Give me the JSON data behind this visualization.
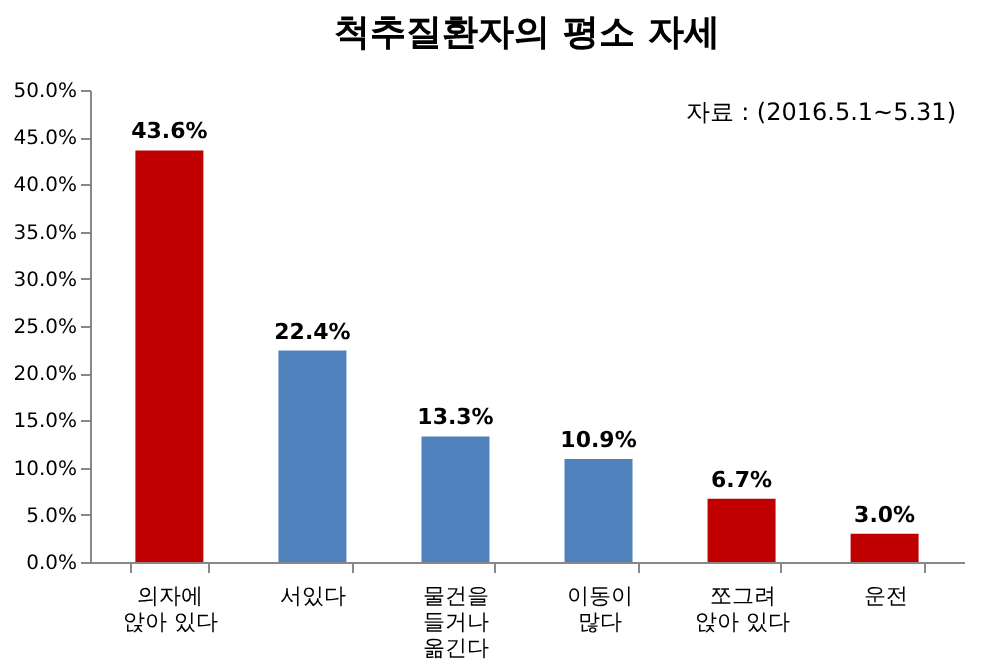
{
  "chart_data": {
    "type": "bar",
    "title": "척추질환자의 평소 자세",
    "annotations": [
      "자료 : (2016.5.1~5.31)"
    ],
    "categories": [
      "의자에\n앉아 있다",
      "서있다",
      "물건을\n들거나\n옮긴다",
      "이동이\n많다",
      "쪼그려\n앉아 있다",
      "운전"
    ],
    "values": [
      43.6,
      22.4,
      13.3,
      10.9,
      6.7,
      3.0
    ],
    "colors": [
      "#c00000",
      "#4f81bd",
      "#4f81bd",
      "#4f81bd",
      "#c00000",
      "#c00000"
    ],
    "value_labels": [
      "43.6%",
      "22.4%",
      "13.3%",
      "10.9%",
      "6.7%",
      "3.0%"
    ],
    "ylim": [
      0,
      50
    ],
    "yticks": [
      {
        "value": 0,
        "label": "0.0%"
      },
      {
        "value": 5,
        "label": "5.0%"
      },
      {
        "value": 10,
        "label": "10.0%"
      },
      {
        "value": 15,
        "label": "15.0%"
      },
      {
        "value": 20,
        "label": "20.0%"
      },
      {
        "value": 25,
        "label": "25.0%"
      },
      {
        "value": 30,
        "label": "30.0%"
      },
      {
        "value": 35,
        "label": "35.0%"
      },
      {
        "value": 40,
        "label": "40.0%"
      },
      {
        "value": 45,
        "label": "45.0%"
      },
      {
        "value": 50,
        "label": "50.0%"
      }
    ],
    "grid": false
  }
}
